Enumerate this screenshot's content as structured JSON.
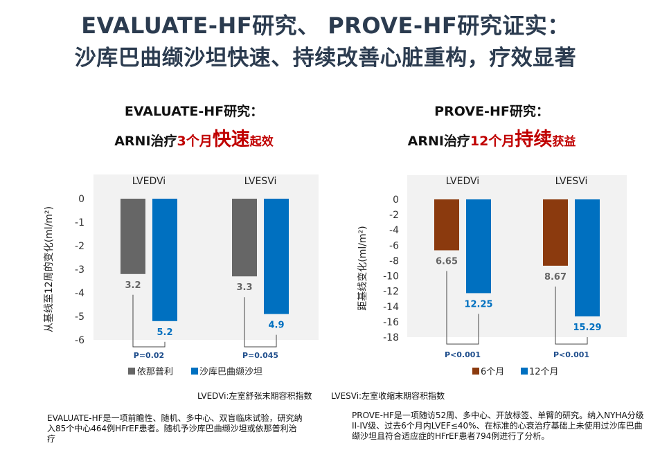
{
  "header": {
    "line1": "EVALUATE-HF研究、  PROVE-HF研究证实：",
    "line2": "沙库巴曲缬沙坦快速、持续改善心脏重构，疗效显著"
  },
  "left_panel": {
    "heading": "EVALUATE-HF研究：",
    "subheading_prefix": "ARNI治疗",
    "subheading_time": "3个月",
    "subheading_emph": "快速",
    "subheading_suffix": "起效",
    "description": "EVALUATE-HF是一项前瞻性、随机、多中心、双盲临床试验，研究纳入85个中心464例HFrEF患者。随机予沙库巴曲缬沙坦或依那普利治疗"
  },
  "right_panel": {
    "heading": "PROVE-HF研究：",
    "subheading_prefix": "ARNI治疗",
    "subheading_time": "12个月",
    "subheading_emph": "持续",
    "subheading_suffix": "获益",
    "description": "PROVE-HF是一项随访52周、多中心、开放标签、单臂的研究。纳入NYHA分级II-IV级、过去6个月内LVEF≤40%、在标准的心衰治疗基础上未使用过沙库巴曲缬沙坦且符合适应症的HFrEF患者794例进行了分析。"
  },
  "abbreviations": {
    "lvedvi": "LVEDVi:左室舒张末期容积指数",
    "lvesvi": "LVESVi:左室收缩末期容积指数"
  },
  "chart_data": [
    {
      "type": "bar",
      "categories": [
        "LVEDVi",
        "LVESVi"
      ],
      "series": [
        {
          "name": "依那普利",
          "values": [
            -3.2,
            -3.3
          ],
          "labels": [
            "3.2",
            "3.3"
          ],
          "color": "#666666",
          "label_color": "#666666"
        },
        {
          "name": "沙库巴曲缬沙坦",
          "values": [
            -5.2,
            -4.9
          ],
          "labels": [
            "5.2",
            "4.9"
          ],
          "color": "#0070c0",
          "label_color": "#0070c0"
        }
      ],
      "ylabel": "从基线至12周的变化(ml/m²)",
      "ylim": [
        -6,
        0
      ],
      "yticks": [
        0,
        -1,
        -2,
        -3,
        -4,
        -5,
        -6
      ],
      "p_values": [
        "P=0.02",
        "P=0.045"
      ],
      "legend_position": "bottom-left"
    },
    {
      "type": "bar",
      "categories": [
        "LVEDVi",
        "LVESVi"
      ],
      "series": [
        {
          "name": "6个月",
          "values": [
            -6.65,
            -8.67
          ],
          "labels": [
            "6.65",
            "8.67"
          ],
          "color": "#8b3a0e",
          "label_color": "#666666"
        },
        {
          "name": "12个月",
          "values": [
            -12.25,
            -15.29
          ],
          "labels": [
            "12.25",
            "15.29"
          ],
          "color": "#0070c0",
          "label_color": "#0070c0"
        }
      ],
      "ylabel": "距基线变化(ml/m²)",
      "ylim": [
        -18,
        0
      ],
      "yticks": [
        0,
        -2,
        -4,
        -6,
        -8,
        -10,
        -12,
        -14,
        -16,
        -18
      ],
      "p_values": [
        "P<0.001",
        "P<0.001"
      ],
      "legend_position": "bottom-center"
    }
  ]
}
